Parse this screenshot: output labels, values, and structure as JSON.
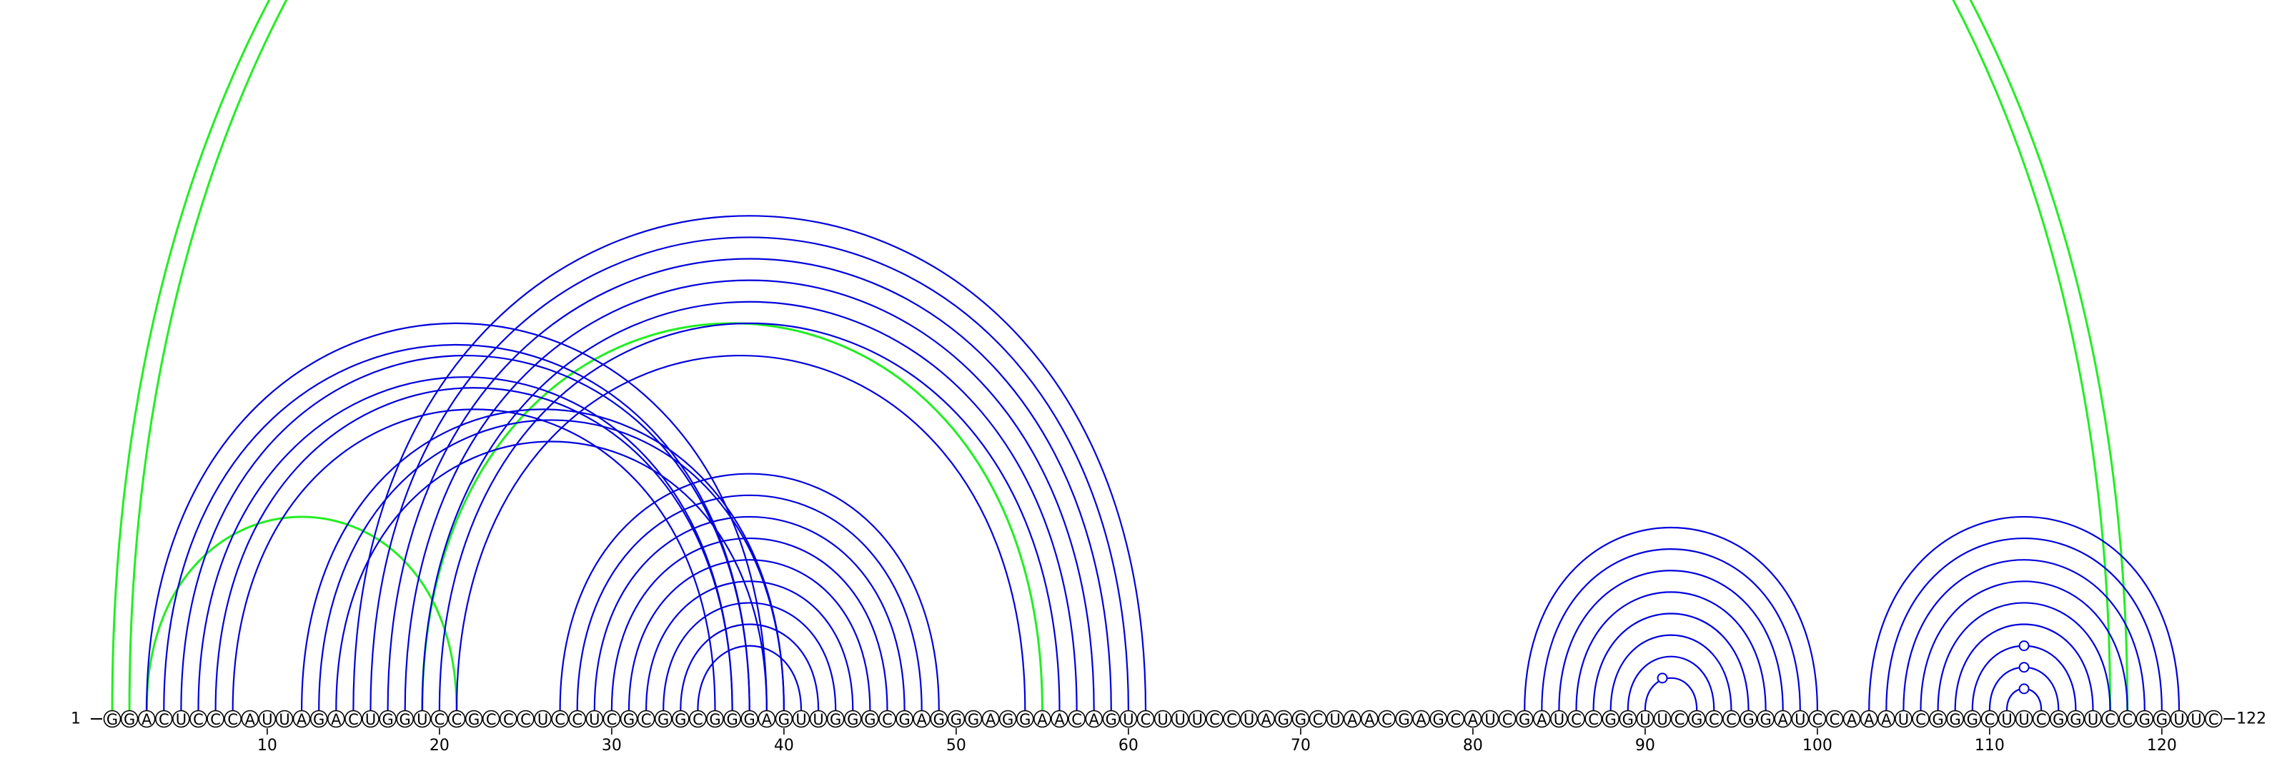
{
  "diagram": {
    "sequence": "GGACUCCCAUUAGACUGGUCCGCCCUCCUCGCGGCGGGAGUUGGGCGAGGGAGGAACAGUCUUUCCUAGGCUAACGAGCAUCGAUCCGGUUCGCCGGAUCCAAAUCGGGCUUCGGUCCGGUUC",
    "start_label": "1",
    "end_label": "122",
    "tick_labels": [
      "10",
      "20",
      "30",
      "40",
      "50",
      "60",
      "70",
      "80",
      "90",
      "100",
      "110",
      "120"
    ],
    "colors": {
      "primary_arc": "#0000dd",
      "secondary_arc": "#22ee22",
      "base_outline": "#000000"
    },
    "blue_pairs": [
      [
        3,
        39
      ],
      [
        4,
        38
      ],
      [
        5,
        38
      ],
      [
        6,
        37
      ],
      [
        7,
        37
      ],
      [
        8,
        36
      ],
      [
        12,
        40
      ],
      [
        13,
        40
      ],
      [
        14,
        39
      ],
      [
        15,
        61
      ],
      [
        16,
        60
      ],
      [
        17,
        59
      ],
      [
        18,
        58
      ],
      [
        19,
        57
      ],
      [
        20,
        56
      ],
      [
        21,
        54
      ],
      [
        27,
        49
      ],
      [
        28,
        48
      ],
      [
        29,
        47
      ],
      [
        30,
        46
      ],
      [
        31,
        45
      ],
      [
        32,
        44
      ],
      [
        33,
        43
      ],
      [
        34,
        42
      ],
      [
        35,
        41
      ],
      [
        83,
        100
      ],
      [
        84,
        99
      ],
      [
        85,
        98
      ],
      [
        86,
        97
      ],
      [
        87,
        96
      ],
      [
        88,
        95
      ],
      [
        89,
        94
      ],
      [
        90,
        93
      ],
      [
        103,
        121
      ],
      [
        104,
        120
      ],
      [
        105,
        119
      ],
      [
        106,
        118
      ],
      [
        107,
        117
      ],
      [
        108,
        116
      ],
      [
        109,
        115
      ],
      [
        110,
        114
      ],
      [
        111,
        113
      ]
    ],
    "green_pairs": [
      [
        1,
        117
      ],
      [
        2,
        118
      ],
      [
        3,
        21
      ],
      [
        19,
        55
      ]
    ],
    "green_markers": [
      37
    ],
    "loop_markers": [
      91,
      112
    ]
  }
}
